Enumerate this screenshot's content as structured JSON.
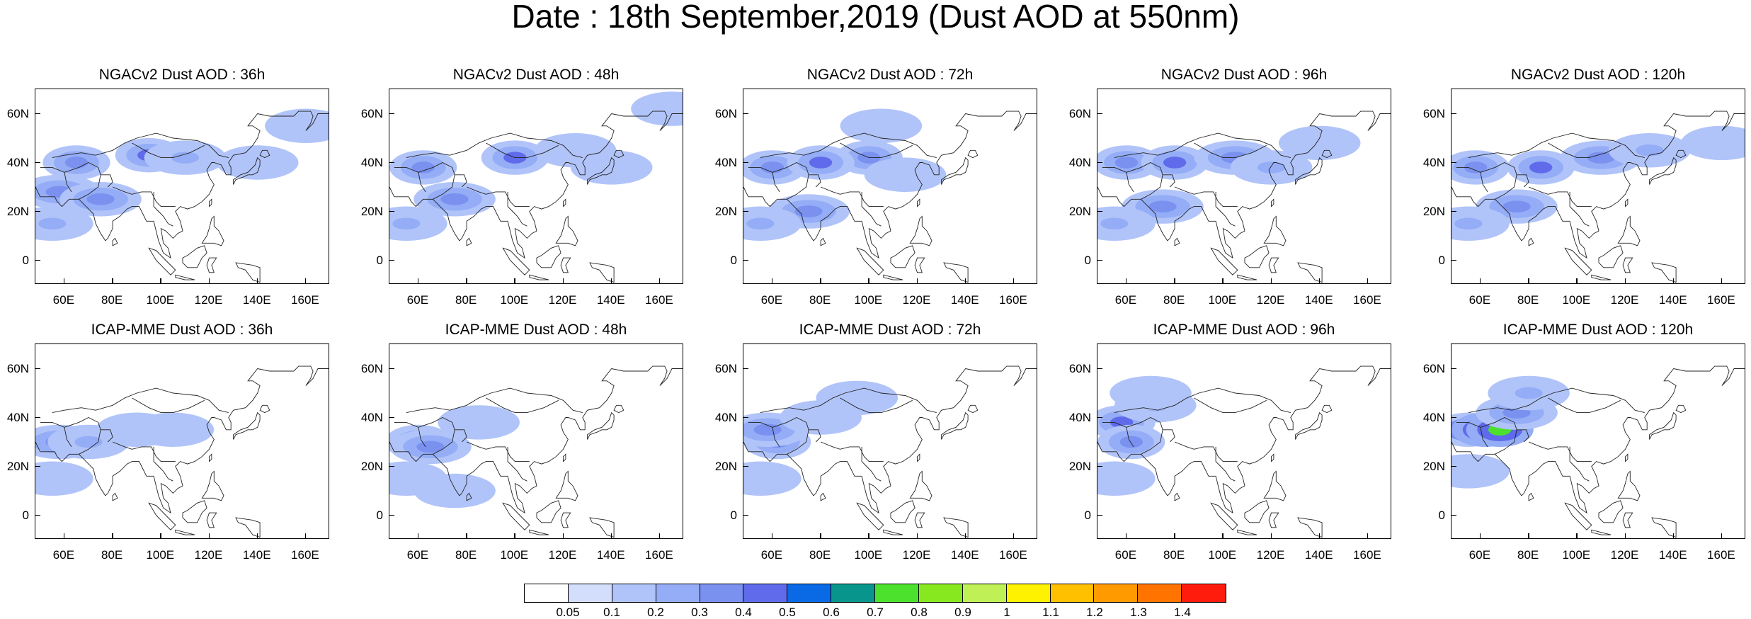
{
  "title": "Date : 18th September,2019 (Dust AOD at 550nm)",
  "panels": [
    {
      "title": "NGACv2 Dust AOD : 36h",
      "model": "NGACv2",
      "lead": "36h",
      "dust": [
        [
          65,
          40,
          0.35
        ],
        [
          95,
          43,
          0.4
        ],
        [
          58,
          28,
          0.3
        ],
        [
          75,
          25,
          0.3
        ],
        [
          110,
          42,
          0.2
        ],
        [
          140,
          40,
          0.1
        ],
        [
          55,
          15,
          0.2
        ],
        [
          160,
          55,
          0.1
        ]
      ]
    },
    {
      "title": "NGACv2 Dust AOD : 48h",
      "model": "NGACv2",
      "lead": "48h",
      "dust": [
        [
          62,
          38,
          0.35
        ],
        [
          100,
          42,
          0.4
        ],
        [
          75,
          25,
          0.3
        ],
        [
          55,
          15,
          0.2
        ],
        [
          125,
          45,
          0.15
        ],
        [
          140,
          38,
          0.1
        ],
        [
          165,
          62,
          0.1
        ]
      ]
    },
    {
      "title": "NGACv2 Dust AOD : 72h",
      "model": "NGACv2",
      "lead": "72h",
      "dust": [
        [
          60,
          38,
          0.35
        ],
        [
          100,
          42,
          0.35
        ],
        [
          80,
          40,
          0.4
        ],
        [
          75,
          20,
          0.3
        ],
        [
          55,
          15,
          0.2
        ],
        [
          115,
          35,
          0.15
        ],
        [
          105,
          55,
          0.1
        ]
      ]
    },
    {
      "title": "NGACv2 Dust AOD : 96h",
      "model": "NGACv2",
      "lead": "96h",
      "dust": [
        [
          60,
          40,
          0.35
        ],
        [
          80,
          40,
          0.4
        ],
        [
          105,
          42,
          0.3
        ],
        [
          75,
          22,
          0.3
        ],
        [
          55,
          15,
          0.2
        ],
        [
          120,
          38,
          0.2
        ],
        [
          140,
          48,
          0.1
        ]
      ]
    },
    {
      "title": "NGACv2 Dust AOD : 120h",
      "model": "NGACv2",
      "lead": "120h",
      "dust": [
        [
          58,
          38,
          0.35
        ],
        [
          85,
          38,
          0.4
        ],
        [
          110,
          42,
          0.3
        ],
        [
          75,
          22,
          0.3
        ],
        [
          55,
          15,
          0.2
        ],
        [
          130,
          45,
          0.2
        ],
        [
          160,
          48,
          0.1
        ]
      ]
    },
    {
      "title": "ICAP-MME Dust AOD : 36h",
      "model": "ICAP-MME",
      "lead": "36h",
      "dust": [
        [
          58,
          30,
          0.3
        ],
        [
          70,
          30,
          0.2
        ],
        [
          90,
          35,
          0.1
        ],
        [
          105,
          35,
          0.15
        ],
        [
          55,
          15,
          0.1
        ]
      ]
    },
    {
      "title": "ICAP-MME Dust AOD : 48h",
      "model": "ICAP-MME",
      "lead": "48h",
      "dust": [
        [
          60,
          30,
          0.35
        ],
        [
          65,
          28,
          0.3
        ],
        [
          85,
          38,
          0.1
        ],
        [
          55,
          15,
          0.1
        ],
        [
          75,
          10,
          0.1
        ]
      ]
    },
    {
      "title": "ICAP-MME Dust AOD : 72h",
      "model": "ICAP-MME",
      "lead": "72h",
      "dust": [
        [
          62,
          30,
          0.35
        ],
        [
          58,
          35,
          0.3
        ],
        [
          80,
          40,
          0.1
        ],
        [
          55,
          15,
          0.1
        ],
        [
          95,
          48,
          0.05
        ]
      ]
    },
    {
      "title": "ICAP-MME Dust AOD : 96h",
      "model": "ICAP-MME",
      "lead": "96h",
      "dust": [
        [
          58,
          38,
          0.4
        ],
        [
          62,
          30,
          0.35
        ],
        [
          72,
          45,
          0.2
        ],
        [
          55,
          15,
          0.15
        ],
        [
          70,
          50,
          0.1
        ]
      ]
    },
    {
      "title": "ICAP-MME Dust AOD : 120h",
      "model": "ICAP-MME",
      "lead": "120h",
      "dust": [
        [
          55,
          35,
          0.45
        ],
        [
          62,
          35,
          0.6
        ],
        [
          68,
          35,
          0.7
        ],
        [
          75,
          42,
          0.3
        ],
        [
          80,
          50,
          0.2
        ],
        [
          55,
          18,
          0.15
        ]
      ]
    }
  ],
  "axes": {
    "x_ticks": [
      "60E",
      "80E",
      "100E",
      "120E",
      "140E",
      "160E"
    ],
    "x_tick_values": [
      60,
      80,
      100,
      120,
      140,
      160
    ],
    "y_ticks": [
      "60N",
      "40N",
      "20N",
      "0"
    ],
    "y_tick_values": [
      60,
      40,
      20,
      0
    ],
    "lon_range": [
      48,
      170
    ],
    "lat_range": [
      -10,
      70
    ]
  },
  "colorbar": {
    "labels": [
      "0.05",
      "0.1",
      "0.2",
      "0.3",
      "0.4",
      "0.5",
      "0.6",
      "0.7",
      "0.8",
      "0.9",
      "1",
      "1.1",
      "1.2",
      "1.3",
      "1.4"
    ],
    "colors": [
      "#ffffff",
      "#d3defc",
      "#b1c4f9",
      "#94adf6",
      "#7a91f0",
      "#5f6bea",
      "#0a6ae6",
      "#08968c",
      "#4ce12d",
      "#88e81f",
      "#bff055",
      "#fff200",
      "#ffc000",
      "#ff9a00",
      "#ff7400",
      "#ff1c0c"
    ]
  }
}
